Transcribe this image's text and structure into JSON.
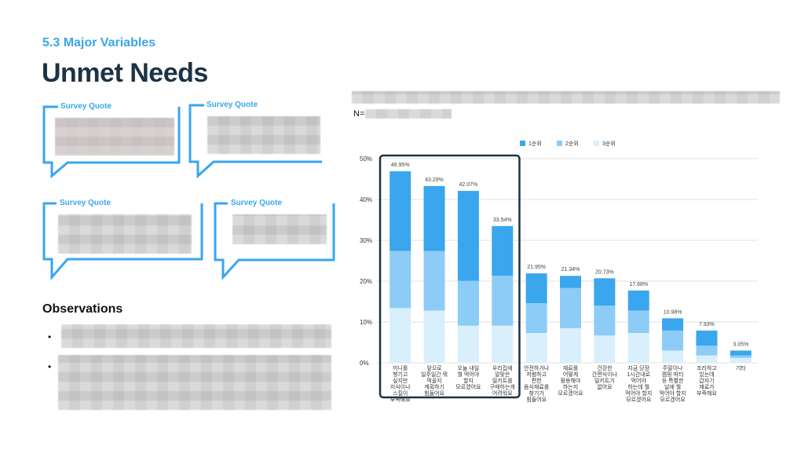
{
  "header": {
    "kicker": "5.3 Major Variables",
    "title": "Unmet Needs"
  },
  "quotes": [
    {
      "label": "Survey Quote"
    },
    {
      "label": "Survey Quote"
    },
    {
      "label": "Survey Quote"
    },
    {
      "label": "Survey Quote"
    }
  ],
  "observations": {
    "title": "Observations",
    "bullets": [
      "•",
      "•"
    ]
  },
  "chart_meta": {
    "n_prefix": "N="
  },
  "colors": {
    "accent": "#3aa6ee",
    "rank1": "#3aa6ee",
    "rank2": "#8dccf6",
    "rank3": "#d9effc",
    "highlight_box": "#1c3346"
  },
  "chart_data": {
    "type": "bar",
    "stacked": true,
    "categories": [
      "끼니를 챙기고 싶지만 지식이나 스킬이 부족해요",
      "앞으로 일주일간 뭐 먹을지 계획하기 힘들어요",
      "오늘 내일 뭘 먹어야 할지 모르겠어요",
      "우리집에 알맞은 밀키트를 구매하는게 어려워요",
      "안전하거나 저렴하고 편한 음식재료를 찾기가 힘들어요",
      "재료를 어떻게 활용해야 하는지 모르겠어요",
      "건강한 간편식이나 밀키트가 없어요",
      "지금 당장 1시간내로 먹어야 하는데 뭘 먹어야 할지 모르겠어요",
      "주말이나 캠핑 파티 등 특별한 날에 뭘 먹어야 할지 모르겠어요",
      "조리하고 있는데 갑자기 재료가 부족해요",
      "기타"
    ],
    "totals": [
      "46.95%",
      "43.29%",
      "42.07%",
      "33.54%",
      "21.95%",
      "21.34%",
      "20.73%",
      "17.68%",
      "10.98%",
      "7.93%",
      "3.05%"
    ],
    "series": [
      {
        "name": "1순위",
        "values": [
          19.5,
          15.9,
          22.0,
          12.2,
          7.3,
          3.0,
          6.7,
          4.9,
          3.0,
          3.7,
          1.2
        ]
      },
      {
        "name": "2순위",
        "values": [
          14.0,
          14.6,
          11.0,
          12.2,
          7.3,
          9.8,
          7.3,
          5.5,
          4.9,
          2.4,
          0.6
        ]
      },
      {
        "name": "3순위",
        "values": [
          13.4,
          12.8,
          9.1,
          9.1,
          7.3,
          8.5,
          6.7,
          7.3,
          3.0,
          1.8,
          1.2
        ]
      }
    ],
    "ylim": [
      0,
      50
    ],
    "yticks": [
      "0%",
      "10%",
      "20%",
      "30%",
      "40%",
      "50%"
    ],
    "legend_position": "top-center",
    "grid": true,
    "highlighted_categories": [
      0,
      1,
      2,
      3
    ]
  }
}
